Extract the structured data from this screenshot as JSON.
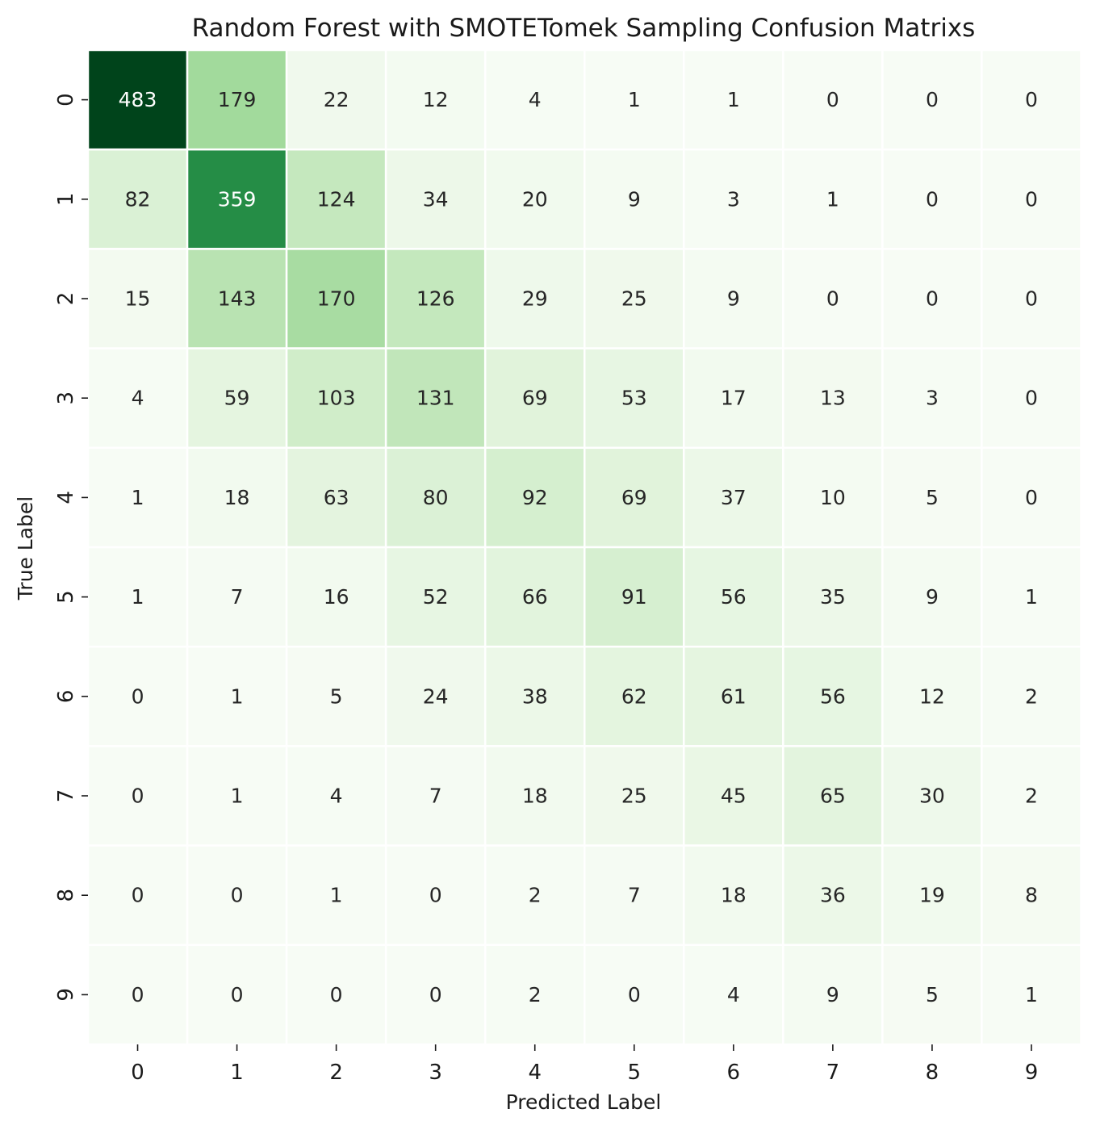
{
  "chart_data": {
    "type": "heatmap",
    "title": "Random Forest with SMOTETomek Sampling Confusion Matrixs",
    "xlabel": "Predicted Label",
    "ylabel": "True Label",
    "x_categories": [
      "0",
      "1",
      "2",
      "3",
      "4",
      "5",
      "6",
      "7",
      "8",
      "9"
    ],
    "y_categories": [
      "0",
      "1",
      "2",
      "3",
      "4",
      "5",
      "6",
      "7",
      "8",
      "9"
    ],
    "values": [
      [
        483,
        179,
        22,
        12,
        4,
        1,
        1,
        0,
        0,
        0
      ],
      [
        82,
        359,
        124,
        34,
        20,
        9,
        3,
        1,
        0,
        0
      ],
      [
        15,
        143,
        170,
        126,
        29,
        25,
        9,
        0,
        0,
        0
      ],
      [
        4,
        59,
        103,
        131,
        69,
        53,
        17,
        13,
        3,
        0
      ],
      [
        1,
        18,
        63,
        80,
        92,
        69,
        37,
        10,
        5,
        0
      ],
      [
        1,
        7,
        16,
        52,
        66,
        91,
        56,
        35,
        9,
        1
      ],
      [
        0,
        1,
        5,
        24,
        38,
        62,
        61,
        56,
        12,
        2
      ],
      [
        0,
        1,
        4,
        7,
        18,
        25,
        45,
        65,
        30,
        2
      ],
      [
        0,
        0,
        1,
        0,
        2,
        7,
        18,
        36,
        19,
        8
      ],
      [
        0,
        0,
        0,
        0,
        2,
        0,
        4,
        9,
        5,
        1
      ]
    ],
    "value_range": [
      0,
      483
    ],
    "colormap": "Greens",
    "colorbar": false,
    "cell_border_color": "#ffffff"
  }
}
